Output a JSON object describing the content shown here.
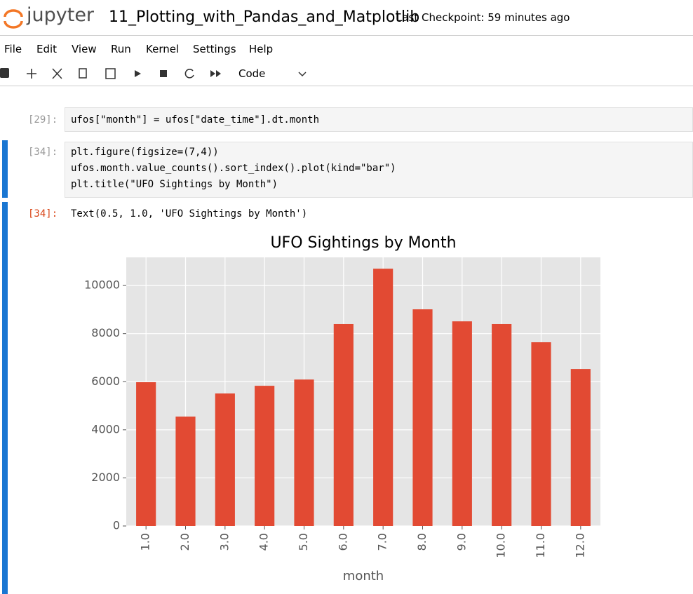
{
  "header": {
    "logo_text": "jupyter",
    "notebook_name": "11_Plotting_with_Pandas_and_Matplotlib",
    "checkpoint": "Last Checkpoint: 59 minutes ago"
  },
  "menu": [
    "File",
    "Edit",
    "View",
    "Run",
    "Kernel",
    "Settings",
    "Help"
  ],
  "toolbar": {
    "cell_type": "Code"
  },
  "cells": [
    {
      "prompt": "[29]:",
      "lines": [
        "ufos[\"month\"] = ufos[\"date_time\"].dt.month"
      ]
    },
    {
      "prompt": "[34]:",
      "lines": [
        "plt.figure(figsize=(7,4))",
        "ufos.month.value_counts().sort_index().plot(kind=\"bar\")",
        "plt.title(\"UFO Sightings by Month\")"
      ]
    }
  ],
  "output": {
    "prompt": "[34]:",
    "text": "Text(0.5, 1.0, 'UFO Sightings by Month')"
  },
  "chart_data": {
    "type": "bar",
    "title": "UFO Sightings by Month",
    "x_label": "month",
    "categories": [
      "1.0",
      "2.0",
      "3.0",
      "4.0",
      "5.0",
      "6.0",
      "7.0",
      "8.0",
      "9.0",
      "10.0",
      "11.0",
      "12.0"
    ],
    "values": [
      5980,
      4550,
      5510,
      5830,
      6090,
      8400,
      10700,
      9010,
      8510,
      8400,
      7640,
      6530
    ],
    "color": "#e24a33",
    "ylim": [
      0,
      11170
    ],
    "yticks": [
      0,
      2000,
      4000,
      6000,
      8000,
      10000
    ],
    "grid": true
  }
}
